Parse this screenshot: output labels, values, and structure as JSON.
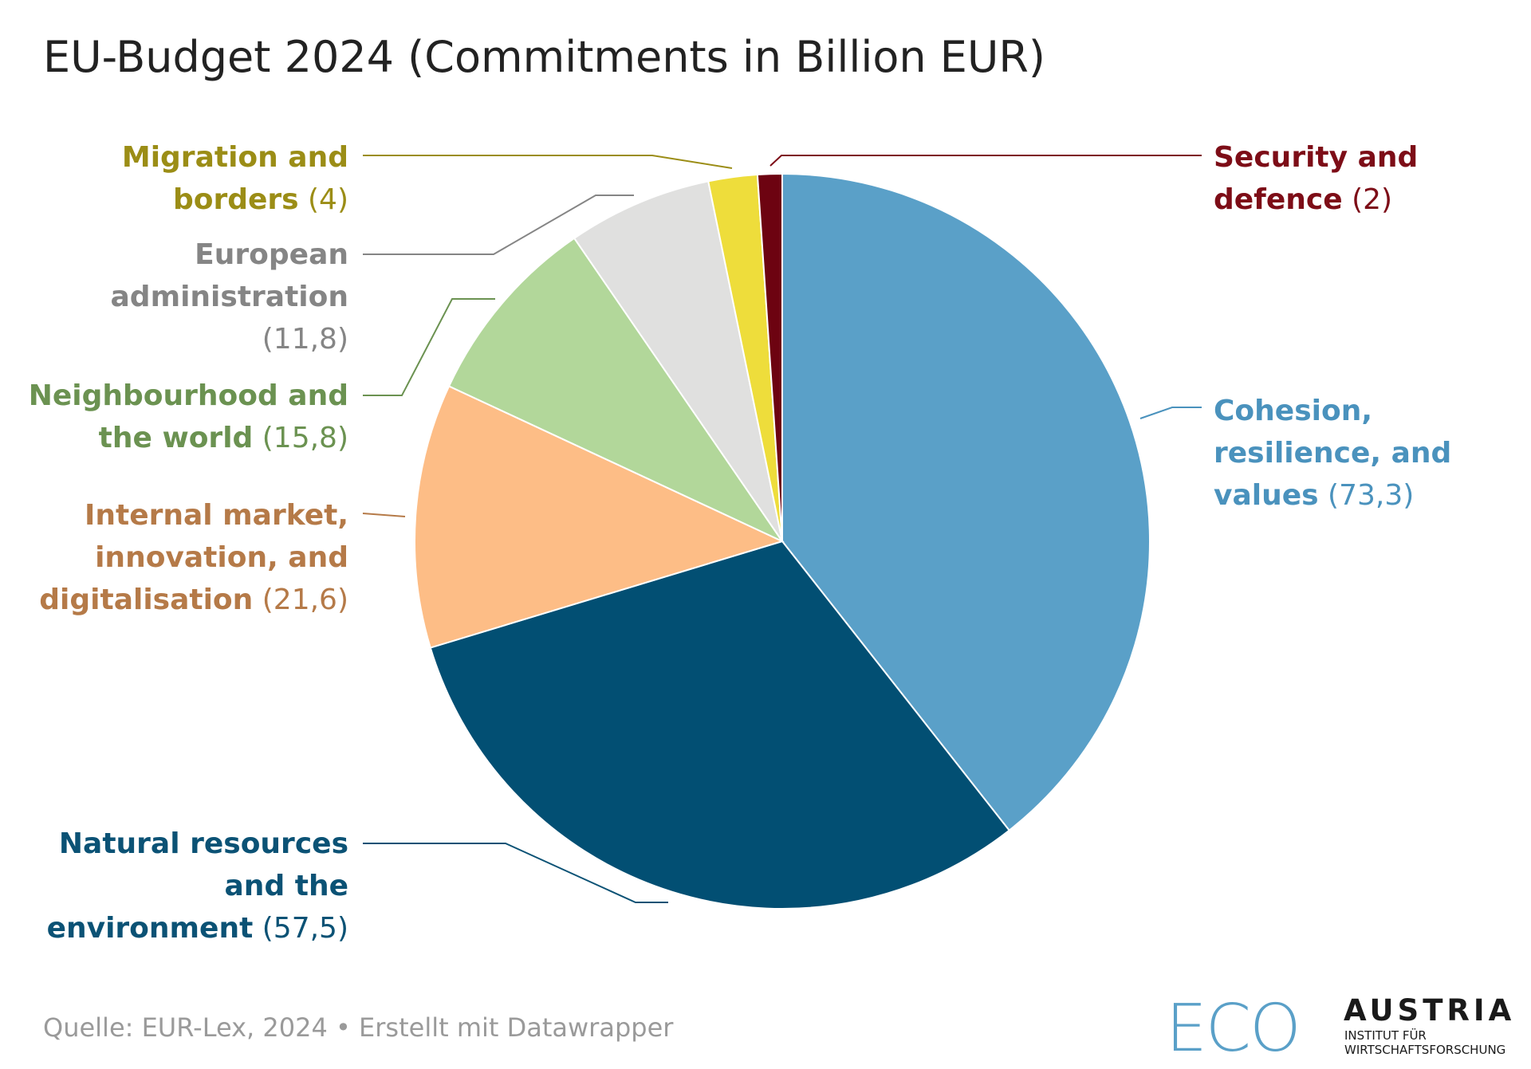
{
  "chart_data": {
    "type": "pie",
    "title": "EU-Budget 2024 (Commitments in Billion EUR)",
    "slices": [
      {
        "name": "Cohesion, resilience, and values",
        "value": 73.3,
        "value_label": "(73,3)",
        "color": "#5aa0c8",
        "label_color": "#4a92bd",
        "label_lines": [
          "Cohesion,",
          "resilience, and",
          "values"
        ]
      },
      {
        "name": "Natural resources and the environment",
        "value": 57.5,
        "value_label": "(57,5)",
        "color": "#024f73",
        "label_color": "#0b5275",
        "label_lines": [
          "Natural resources",
          "and the",
          "environment"
        ]
      },
      {
        "name": "Internal market, innovation, and digitalisation",
        "value": 21.6,
        "value_label": "(21,6)",
        "color": "#fdbd86",
        "label_color": "#b57a48",
        "label_lines": [
          "Internal market,",
          "innovation, and",
          "digitalisation"
        ]
      },
      {
        "name": "Neighbourhood and the world",
        "value": 15.8,
        "value_label": "(15,8)",
        "color": "#b2d79a",
        "label_color": "#6b9251",
        "label_lines": [
          "Neighbourhood and",
          "the world"
        ]
      },
      {
        "name": "European administration",
        "value": 11.8,
        "value_label": "(11,8)",
        "color": "#e0e0df",
        "label_color": "#858585",
        "label_lines": [
          "European",
          "administration"
        ]
      },
      {
        "name": "Migration and borders",
        "value": 4,
        "value_label": "(4)",
        "color": "#eedd3b",
        "label_color": "#9b8d16",
        "label_lines": [
          "Migration and",
          "borders"
        ]
      },
      {
        "name": "Security and defence",
        "value": 2,
        "value_label": "(2)",
        "color": "#6d0311",
        "label_color": "#7d0d17",
        "label_lines": [
          "Security and",
          "defence"
        ]
      }
    ]
  },
  "footer": {
    "source": "Quelle: EUR-Lex, 2024 • Erstellt mit Datawrapper"
  },
  "logo": {
    "mark": "ECO",
    "name": "AUSTRIA",
    "line1": "INSTITUT FÜR",
    "line2": "WIRTSCHAFTSFORSCHUNG",
    "color": "#5aa0c8"
  }
}
